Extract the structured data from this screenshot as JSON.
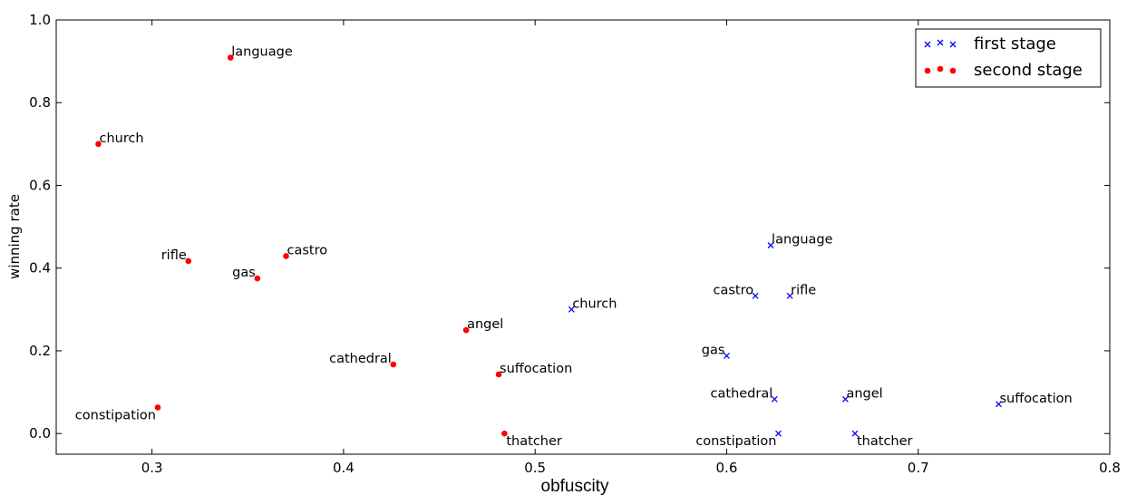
{
  "chart_data": {
    "type": "scatter",
    "xlabel": "obfuscity",
    "ylabel": "winning rate",
    "xlim": [
      0.25,
      0.8
    ],
    "ylim": [
      -0.05,
      1.0
    ],
    "xticks": [
      "0.3",
      "0.4",
      "0.5",
      "0.6",
      "0.7",
      "0.8"
    ],
    "yticks": [
      "0.0",
      "0.2",
      "0.4",
      "0.6",
      "0.8",
      "1.0"
    ],
    "grid": false,
    "legend_position": "top-right",
    "series": [
      {
        "name": "first stage",
        "marker": "x",
        "color": "#0000ff",
        "points": [
          {
            "label": "language",
            "x": 0.623,
            "y": 0.455,
            "anchor": "start"
          },
          {
            "label": "church",
            "x": 0.519,
            "y": 0.3,
            "anchor": "start"
          },
          {
            "label": "castro",
            "x": 0.615,
            "y": 0.333,
            "anchor": "end"
          },
          {
            "label": "rifle",
            "x": 0.633,
            "y": 0.333,
            "anchor": "start"
          },
          {
            "label": "gas",
            "x": 0.6,
            "y": 0.188,
            "anchor": "end"
          },
          {
            "label": "cathedral",
            "x": 0.625,
            "y": 0.083,
            "anchor": "end"
          },
          {
            "label": "angel",
            "x": 0.662,
            "y": 0.083,
            "anchor": "start"
          },
          {
            "label": "suffocation",
            "x": 0.742,
            "y": 0.071,
            "anchor": "start"
          },
          {
            "label": "constipation",
            "x": 0.627,
            "y": 0.0,
            "anchor": "end-below"
          },
          {
            "label": "thatcher",
            "x": 0.667,
            "y": 0.0,
            "anchor": "start-below"
          }
        ]
      },
      {
        "name": "second stage",
        "marker": "o",
        "color": "#ff0000",
        "points": [
          {
            "label": "language",
            "x": 0.341,
            "y": 0.909,
            "anchor": "start"
          },
          {
            "label": "church",
            "x": 0.272,
            "y": 0.7,
            "anchor": "start"
          },
          {
            "label": "castro",
            "x": 0.37,
            "y": 0.429,
            "anchor": "start"
          },
          {
            "label": "rifle",
            "x": 0.319,
            "y": 0.417,
            "anchor": "end"
          },
          {
            "label": "gas",
            "x": 0.355,
            "y": 0.375,
            "anchor": "end"
          },
          {
            "label": "angel",
            "x": 0.464,
            "y": 0.25,
            "anchor": "start"
          },
          {
            "label": "cathedral",
            "x": 0.426,
            "y": 0.167,
            "anchor": "end"
          },
          {
            "label": "suffocation",
            "x": 0.481,
            "y": 0.143,
            "anchor": "start"
          },
          {
            "label": "constipation",
            "x": 0.303,
            "y": 0.063,
            "anchor": "end-below"
          },
          {
            "label": "thatcher",
            "x": 0.484,
            "y": 0.0,
            "anchor": "start-below"
          }
        ]
      }
    ]
  }
}
